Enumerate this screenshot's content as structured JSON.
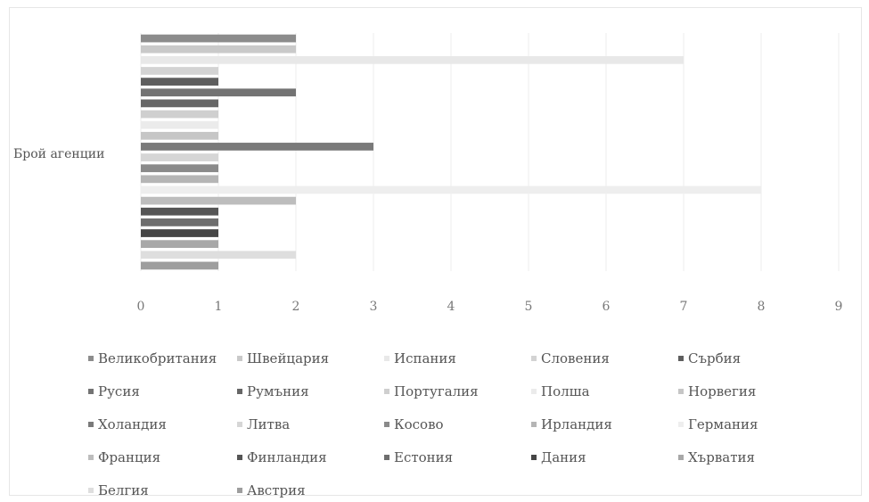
{
  "chart_data": {
    "type": "bar",
    "orientation": "horizontal",
    "category": "Брой агенции",
    "xlim": [
      0,
      9
    ],
    "ticks": [
      0,
      1,
      2,
      3,
      4,
      5,
      6,
      7,
      8,
      9
    ],
    "grid": true,
    "legend_position": "bottom",
    "series": [
      {
        "name": "Великобритания",
        "value": 2,
        "color": "#8c8c8c"
      },
      {
        "name": "Швейцария",
        "value": 2,
        "color": "#c9c9c9"
      },
      {
        "name": "Испания",
        "value": 7,
        "color": "#e8e8e8"
      },
      {
        "name": "Словения",
        "value": 1,
        "color": "#d3d3d3"
      },
      {
        "name": "Сърбия",
        "value": 1,
        "color": "#5e5e5e"
      },
      {
        "name": "Русия",
        "value": 2,
        "color": "#737373"
      },
      {
        "name": "Румъния",
        "value": 1,
        "color": "#666666"
      },
      {
        "name": "Португалия",
        "value": 1,
        "color": "#cfcfcf"
      },
      {
        "name": "Полша",
        "value": 1,
        "color": "#ebebeb"
      },
      {
        "name": "Норвегия",
        "value": 1,
        "color": "#c6c6c6"
      },
      {
        "name": "Холандия",
        "value": 3,
        "color": "#7a7a7a"
      },
      {
        "name": "Литва",
        "value": 1,
        "color": "#d6d6d6"
      },
      {
        "name": "Косово",
        "value": 1,
        "color": "#8a8a8a"
      },
      {
        "name": "Ирландия",
        "value": 1,
        "color": "#b5b5b5"
      },
      {
        "name": "Германия",
        "value": 8,
        "color": "#eeeeee"
      },
      {
        "name": "Франция",
        "value": 2,
        "color": "#bdbdbd"
      },
      {
        "name": "Финландия",
        "value": 1,
        "color": "#555555"
      },
      {
        "name": "Естония",
        "value": 1,
        "color": "#6e6e6e"
      },
      {
        "name": "Дания",
        "value": 1,
        "color": "#454545"
      },
      {
        "name": "Хърватия",
        "value": 1,
        "color": "#a8a8a8"
      },
      {
        "name": "Белгия",
        "value": 2,
        "color": "#dedede"
      },
      {
        "name": "Австрия",
        "value": 1,
        "color": "#9e9e9e"
      }
    ]
  }
}
